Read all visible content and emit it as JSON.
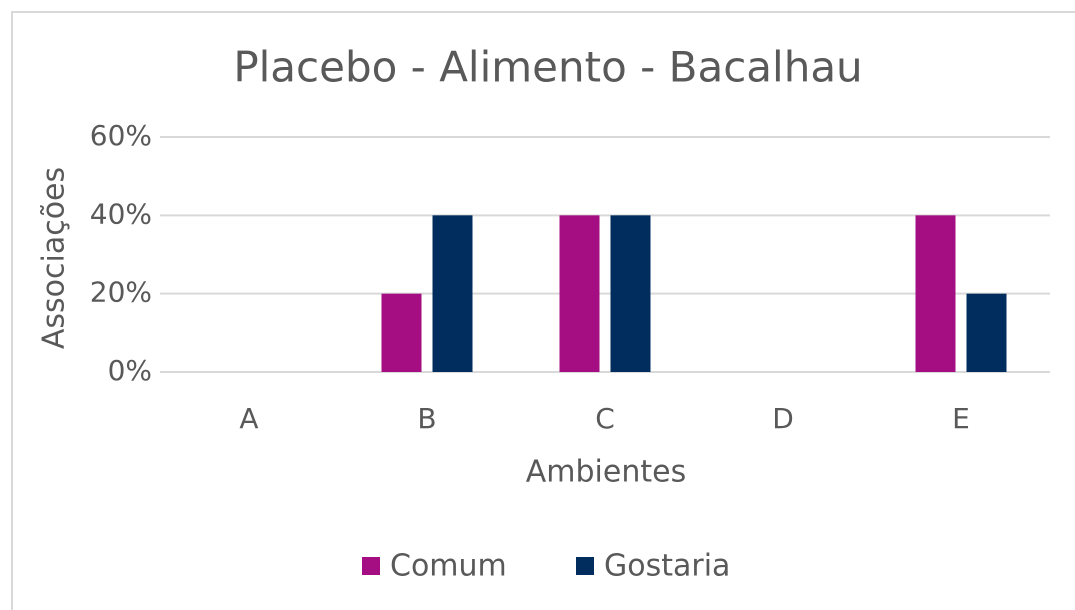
{
  "chart_data": {
    "type": "bar",
    "title": "Placebo - Alimento - Bacalhau",
    "x_label": "Ambientes",
    "y_label": "Associações",
    "categories": [
      "A",
      "B",
      "C",
      "D",
      "E"
    ],
    "series": [
      {
        "name": "Comum",
        "color": "#a50e82",
        "values": [
          0,
          20,
          40,
          0,
          40
        ]
      },
      {
        "name": "Gostaria",
        "color": "#002d5e",
        "values": [
          0,
          40,
          40,
          0,
          20
        ]
      }
    ],
    "ylim": [
      0,
      60
    ],
    "yticks": [
      {
        "value": 0,
        "label": "0%"
      },
      {
        "value": 20,
        "label": "20%"
      },
      {
        "value": 40,
        "label": "40%"
      },
      {
        "value": 60,
        "label": "60%"
      }
    ],
    "grid": true,
    "legend": "bottom"
  }
}
